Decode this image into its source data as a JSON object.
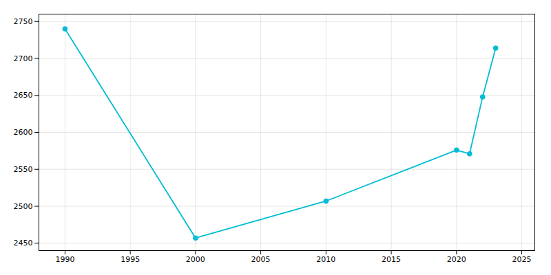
{
  "chart_data": {
    "type": "line",
    "x": [
      1990,
      2000,
      2010,
      2020,
      2021,
      2022,
      2023
    ],
    "values": [
      2740,
      2457,
      2507,
      2576,
      2571,
      2648,
      2714
    ],
    "color": "#00BCD4",
    "marker": "circle",
    "xlim": [
      1988,
      2026
    ],
    "ylim": [
      2440,
      2760
    ],
    "xticks": [
      1990,
      1995,
      2000,
      2005,
      2010,
      2015,
      2020,
      2025
    ],
    "yticks": [
      2450,
      2500,
      2550,
      2600,
      2650,
      2700,
      2750
    ],
    "grid": true
  }
}
